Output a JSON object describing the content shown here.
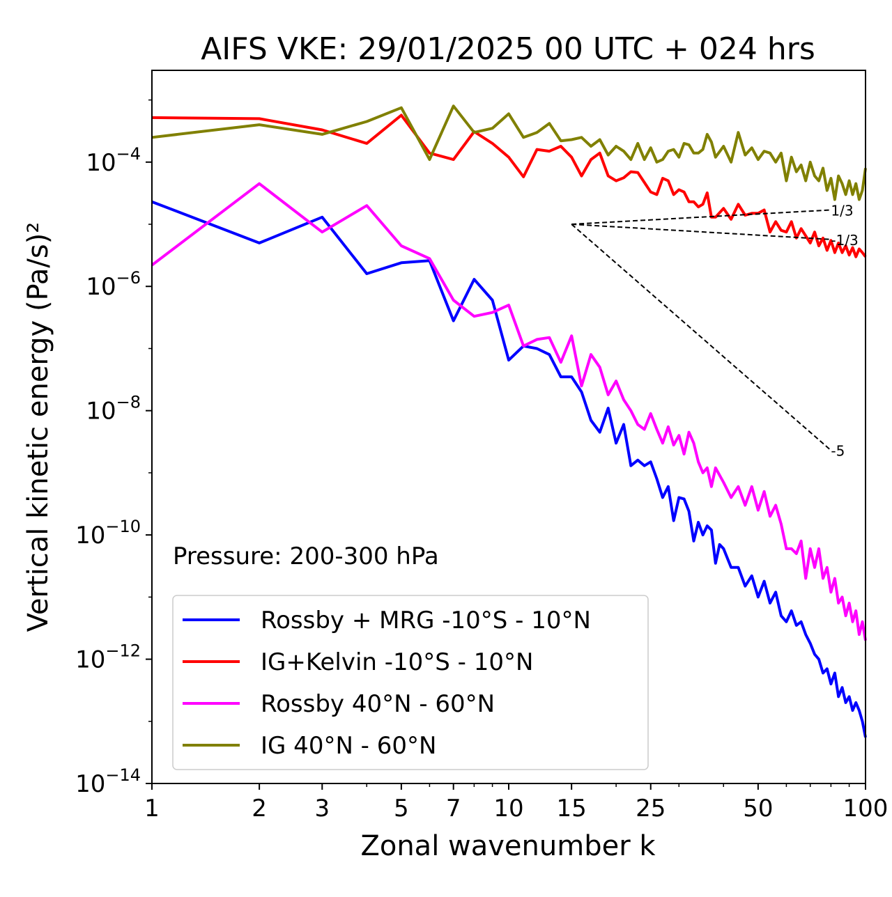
{
  "chart_data": {
    "type": "line",
    "title": "AIFS VKE: 29/01/2025 00 UTC + 024 hrs",
    "xlabel": "Zonal wavenumber k",
    "ylabel": "Vertical kinetic energy (Pa/s)²",
    "xscale": "log",
    "yscale": "log",
    "xlim": [
      1,
      100
    ],
    "ylim": [
      1e-14,
      0.003
    ],
    "x_ticks": [
      1,
      2,
      3,
      5,
      7,
      10,
      15,
      25,
      50,
      100
    ],
    "x_tick_labels": [
      "1",
      "2",
      "3",
      "5",
      "7",
      "10",
      "15",
      "25",
      "50",
      "100"
    ],
    "y_ticks": [
      -14,
      -12,
      -10,
      -8,
      -6,
      -4
    ],
    "y_tick_labels": [
      {
        "base": "10",
        "exp": "−14"
      },
      {
        "base": "10",
        "exp": "−12"
      },
      {
        "base": "10",
        "exp": "−10"
      },
      {
        "base": "10",
        "exp": "−8"
      },
      {
        "base": "10",
        "exp": "−6"
      },
      {
        "base": "10",
        "exp": "−4"
      }
    ],
    "annotation": "Pressure: 200-300 hPa",
    "legend_position": "lower-left",
    "series": [
      {
        "name": "Rossby + MRG -10°S - 10°N",
        "color": "#0000ff",
        "points": [
          [
            1,
            2.3e-05
          ],
          [
            2,
            5e-06
          ],
          [
            3,
            1.3e-05
          ],
          [
            4,
            1.6e-06
          ],
          [
            5,
            2.4e-06
          ],
          [
            6,
            2.6e-06
          ],
          [
            7,
            2.8e-07
          ],
          [
            8,
            1.3e-06
          ],
          [
            9,
            6e-07
          ],
          [
            10,
            6.5e-08
          ],
          [
            11,
            1.1e-07
          ],
          [
            12,
            1e-07
          ],
          [
            13,
            8e-08
          ],
          [
            14,
            3.5e-08
          ],
          [
            15,
            3.5e-08
          ],
          [
            16,
            2e-08
          ],
          [
            17,
            7e-09
          ],
          [
            18,
            4.5e-09
          ],
          [
            19,
            1.1e-08
          ],
          [
            20,
            3e-09
          ],
          [
            21,
            6e-09
          ],
          [
            22,
            1.3e-09
          ],
          [
            23,
            1.6e-09
          ],
          [
            24,
            1.3e-09
          ],
          [
            25,
            1.5e-09
          ],
          [
            26,
            8e-10
          ],
          [
            27,
            4e-10
          ],
          [
            28,
            6e-10
          ],
          [
            29,
            1.7e-10
          ],
          [
            30,
            4e-10
          ],
          [
            31,
            3.8e-10
          ],
          [
            32,
            2.4e-10
          ],
          [
            33,
            8e-11
          ],
          [
            34,
            1.6e-10
          ],
          [
            35,
            1e-10
          ],
          [
            36,
            1.4e-10
          ],
          [
            37,
            1.2e-10
          ],
          [
            38,
            3.5e-11
          ],
          [
            39,
            7e-11
          ],
          [
            40,
            6e-11
          ],
          [
            42,
            3e-11
          ],
          [
            44,
            3e-11
          ],
          [
            46,
            1.5e-11
          ],
          [
            48,
            2.2e-11
          ],
          [
            50,
            1e-11
          ],
          [
            52,
            1.8e-11
          ],
          [
            54,
            8e-12
          ],
          [
            56,
            1.2e-11
          ],
          [
            58,
            5e-12
          ],
          [
            60,
            4e-12
          ],
          [
            62,
            6e-12
          ],
          [
            64,
            3.5e-12
          ],
          [
            66,
            4e-12
          ],
          [
            68,
            2.5e-12
          ],
          [
            70,
            1.8e-12
          ],
          [
            72,
            1.2e-12
          ],
          [
            74,
            1e-12
          ],
          [
            76,
            6e-13
          ],
          [
            78,
            7e-13
          ],
          [
            80,
            4e-13
          ],
          [
            82,
            6e-13
          ],
          [
            84,
            2.5e-13
          ],
          [
            86,
            3.5e-13
          ],
          [
            88,
            2e-13
          ],
          [
            90,
            2.5e-13
          ],
          [
            92,
            1.5e-13
          ],
          [
            94,
            2e-13
          ],
          [
            96,
            1.5e-13
          ],
          [
            98,
            1e-13
          ],
          [
            100,
            5.5e-14
          ]
        ]
      },
      {
        "name": "IG+Kelvin -10°S - 10°N",
        "color": "#ff0000",
        "points": [
          [
            1,
            0.00052
          ],
          [
            2,
            0.0005
          ],
          [
            3,
            0.00033
          ],
          [
            4,
            0.0002
          ],
          [
            5,
            0.00057
          ],
          [
            6,
            0.00014
          ],
          [
            7,
            0.00011
          ],
          [
            8,
            0.00031
          ],
          [
            9,
            0.0002
          ],
          [
            10,
            0.00012
          ],
          [
            11,
            5.8e-05
          ],
          [
            12,
            0.00016
          ],
          [
            13,
            0.00015
          ],
          [
            14,
            0.00018
          ],
          [
            15,
            0.00012
          ],
          [
            16,
            6e-05
          ],
          [
            17,
            0.00011
          ],
          [
            18,
            0.00014
          ],
          [
            19,
            6e-05
          ],
          [
            20,
            5e-05
          ],
          [
            21,
            5.6e-05
          ],
          [
            22,
            7e-05
          ],
          [
            23,
            6.8e-05
          ],
          [
            24,
            4.7e-05
          ],
          [
            25,
            3.3e-05
          ],
          [
            26,
            3e-05
          ],
          [
            27,
            5.5e-05
          ],
          [
            28,
            5e-05
          ],
          [
            29,
            3e-05
          ],
          [
            30,
            3.6e-05
          ],
          [
            31,
            3.3e-05
          ],
          [
            32,
            2.3e-05
          ],
          [
            33,
            2.3e-05
          ],
          [
            34,
            1.9e-05
          ],
          [
            35,
            2.1e-05
          ],
          [
            36,
            3.2e-05
          ],
          [
            37,
            1.3e-05
          ],
          [
            38,
            1.3e-05
          ],
          [
            40,
            1.8e-05
          ],
          [
            42,
            1.2e-05
          ],
          [
            44,
            2.1e-05
          ],
          [
            46,
            1.4e-05
          ],
          [
            48,
            1.5e-05
          ],
          [
            50,
            1.5e-05
          ],
          [
            52,
            1.7e-05
          ],
          [
            54,
            7.5e-06
          ],
          [
            56,
            1.1e-05
          ],
          [
            58,
            8e-06
          ],
          [
            60,
            7.5e-06
          ],
          [
            62,
            1.1e-05
          ],
          [
            64,
            6e-06
          ],
          [
            66,
            8.5e-06
          ],
          [
            68,
            6.5e-06
          ],
          [
            70,
            5e-06
          ],
          [
            72,
            7.5e-06
          ],
          [
            74,
            4.5e-06
          ],
          [
            76,
            6e-06
          ],
          [
            78,
            3.8e-06
          ],
          [
            80,
            5.5e-06
          ],
          [
            82,
            3.5e-06
          ],
          [
            84,
            5e-06
          ],
          [
            86,
            3.5e-06
          ],
          [
            88,
            4.5e-06
          ],
          [
            90,
            3.2e-06
          ],
          [
            92,
            4.2e-06
          ],
          [
            94,
            3e-06
          ],
          [
            96,
            4e-06
          ],
          [
            98,
            3.5e-06
          ],
          [
            100,
            3e-06
          ]
        ]
      },
      {
        "name": "Rossby 40°N - 60°N",
        "color": "#ff00ff",
        "points": [
          [
            1,
            2.2e-06
          ],
          [
            2,
            4.5e-05
          ],
          [
            3,
            7.5e-06
          ],
          [
            4,
            2e-05
          ],
          [
            5,
            4.5e-06
          ],
          [
            6,
            2.8e-06
          ],
          [
            7,
            6e-07
          ],
          [
            8,
            3.3e-07
          ],
          [
            9,
            3.8e-07
          ],
          [
            10,
            5e-07
          ],
          [
            11,
            1.1e-07
          ],
          [
            12,
            1.4e-07
          ],
          [
            13,
            1.5e-07
          ],
          [
            14,
            6e-08
          ],
          [
            15,
            1.6e-07
          ],
          [
            16,
            2.5e-08
          ],
          [
            17,
            8e-08
          ],
          [
            18,
            5e-08
          ],
          [
            19,
            1.8e-08
          ],
          [
            20,
            3e-08
          ],
          [
            21,
            1.5e-08
          ],
          [
            22,
            1e-08
          ],
          [
            23,
            6e-09
          ],
          [
            24,
            5e-09
          ],
          [
            25,
            9e-09
          ],
          [
            26,
            5e-09
          ],
          [
            27,
            3e-09
          ],
          [
            28,
            5.5e-09
          ],
          [
            29,
            2.8e-09
          ],
          [
            30,
            4e-09
          ],
          [
            31,
            2e-09
          ],
          [
            32,
            4.5e-09
          ],
          [
            33,
            3e-09
          ],
          [
            34,
            1.5e-09
          ],
          [
            35,
            1e-09
          ],
          [
            36,
            1.2e-09
          ],
          [
            37,
            6e-10
          ],
          [
            38,
            1.2e-09
          ],
          [
            40,
            7e-10
          ],
          [
            42,
            4e-10
          ],
          [
            44,
            6e-10
          ],
          [
            46,
            3e-10
          ],
          [
            48,
            6e-10
          ],
          [
            50,
            2.5e-10
          ],
          [
            52,
            5e-10
          ],
          [
            54,
            2e-10
          ],
          [
            56,
            3e-10
          ],
          [
            58,
            1.5e-10
          ],
          [
            60,
            6e-11
          ],
          [
            62,
            6e-11
          ],
          [
            64,
            5e-11
          ],
          [
            66,
            8e-11
          ],
          [
            68,
            2e-11
          ],
          [
            70,
            6e-11
          ],
          [
            72,
            3e-11
          ],
          [
            74,
            6e-11
          ],
          [
            76,
            2e-11
          ],
          [
            78,
            3e-11
          ],
          [
            80,
            1.2e-11
          ],
          [
            82,
            2e-11
          ],
          [
            84,
            8e-12
          ],
          [
            86,
            1e-11
          ],
          [
            88,
            5e-12
          ],
          [
            90,
            8e-12
          ],
          [
            92,
            4e-12
          ],
          [
            94,
            6e-12
          ],
          [
            96,
            2.5e-12
          ],
          [
            98,
            4e-12
          ],
          [
            100,
            2e-12
          ]
        ]
      },
      {
        "name": "IG 40°N - 60°N",
        "color": "#808000",
        "points": [
          [
            1,
            0.00025
          ],
          [
            2,
            0.0004
          ],
          [
            3,
            0.00028
          ],
          [
            4,
            0.00045
          ],
          [
            5,
            0.00075
          ],
          [
            6,
            0.00011
          ],
          [
            7,
            0.0008
          ],
          [
            8,
            0.0003
          ],
          [
            9,
            0.00035
          ],
          [
            10,
            0.0006
          ],
          [
            11,
            0.00025
          ],
          [
            12,
            0.0003
          ],
          [
            13,
            0.00042
          ],
          [
            14,
            0.00022
          ],
          [
            15,
            0.00023
          ],
          [
            16,
            0.00025
          ],
          [
            17,
            0.00018
          ],
          [
            18,
            0.00023
          ],
          [
            19,
            0.00013
          ],
          [
            20,
            0.00018
          ],
          [
            21,
            0.00015
          ],
          [
            22,
            0.00011
          ],
          [
            23,
            0.0002
          ],
          [
            24,
            0.00011
          ],
          [
            25,
            0.00017
          ],
          [
            26,
            0.0001
          ],
          [
            27,
            0.00011
          ],
          [
            28,
            0.00015
          ],
          [
            29,
            0.00016
          ],
          [
            30,
            0.00012
          ],
          [
            31,
            0.0002
          ],
          [
            32,
            0.00019
          ],
          [
            33,
            0.00014
          ],
          [
            34,
            0.00014
          ],
          [
            35,
            0.00016
          ],
          [
            36,
            0.00028
          ],
          [
            37,
            0.00021
          ],
          [
            38,
            0.00012
          ],
          [
            40,
            0.00018
          ],
          [
            42,
            0.0001
          ],
          [
            44,
            0.0003
          ],
          [
            46,
            0.00013
          ],
          [
            48,
            0.00017
          ],
          [
            50,
            0.00011
          ],
          [
            52,
            0.00015
          ],
          [
            54,
            0.00014
          ],
          [
            56,
            0.0001
          ],
          [
            58,
            0.00014
          ],
          [
            60,
            5e-05
          ],
          [
            62,
            0.00012
          ],
          [
            64,
            7e-05
          ],
          [
            66,
            9e-05
          ],
          [
            68,
            5e-05
          ],
          [
            70,
            0.0001
          ],
          [
            72,
            6e-05
          ],
          [
            74,
            5e-05
          ],
          [
            76,
            8e-05
          ],
          [
            78,
            3.5e-05
          ],
          [
            80,
            5.5e-05
          ],
          [
            82,
            2.5e-05
          ],
          [
            84,
            6e-05
          ],
          [
            86,
            4.5e-05
          ],
          [
            88,
            3e-05
          ],
          [
            90,
            5e-05
          ],
          [
            92,
            3e-05
          ],
          [
            94,
            4.5e-05
          ],
          [
            96,
            2.5e-05
          ],
          [
            98,
            3.5e-05
          ],
          [
            100,
            8e-05
          ]
        ]
      }
    ],
    "reference_lines": [
      {
        "label": "1/3",
        "color": "#000000",
        "style": "dashed",
        "from": [
          15,
          1e-05
        ],
        "to": [
          80,
          1.7e-05
        ]
      },
      {
        "label": "-1/3",
        "color": "#000000",
        "style": "dashed",
        "from": [
          15,
          1e-05
        ],
        "to": [
          80,
          5.7e-06
        ]
      },
      {
        "label": "-5",
        "color": "#000000",
        "style": "dashed",
        "from": [
          15,
          1e-05
        ],
        "to": [
          80,
          2.3e-09
        ]
      }
    ]
  }
}
